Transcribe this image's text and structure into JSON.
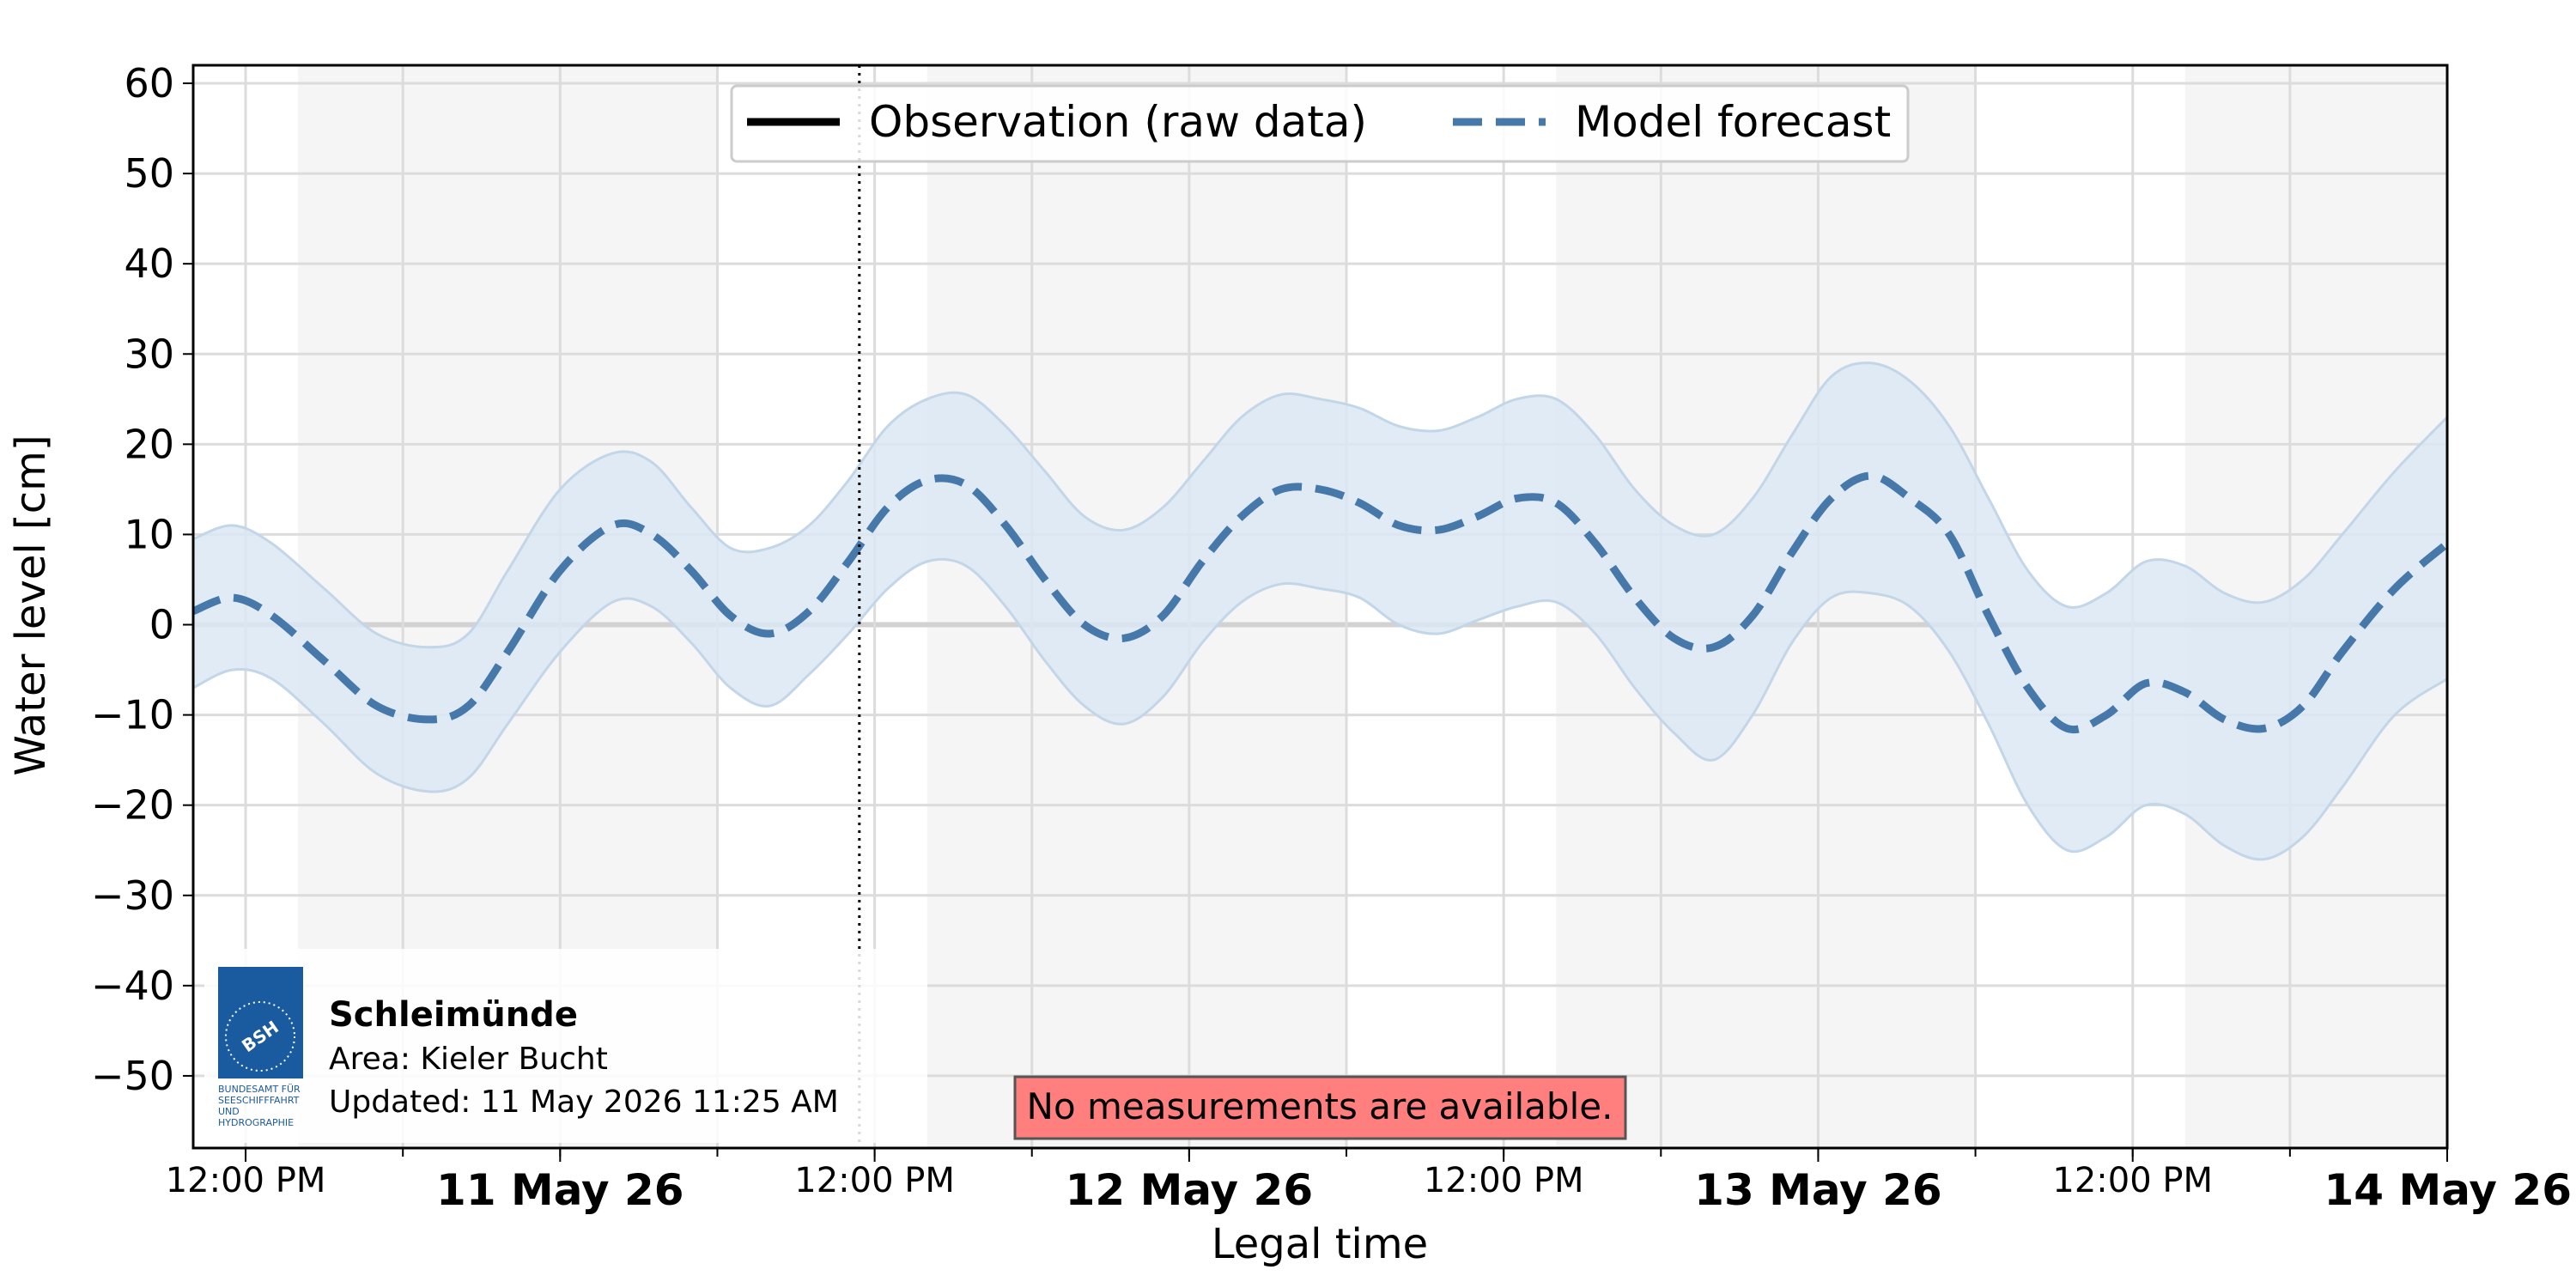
{
  "chart_data": {
    "type": "line",
    "title": "",
    "xlabel": "Legal time",
    "ylabel": "Water level [cm]",
    "ylim": [
      -58,
      62
    ],
    "x_range": [
      "2026-05-10 10:00",
      "2026-05-14 00:00"
    ],
    "yticks": [
      60,
      50,
      40,
      30,
      20,
      10,
      0,
      -10,
      -20,
      -30,
      -40,
      -50
    ],
    "ytick_labels": [
      "60",
      "50",
      "40",
      "30",
      "20",
      "10",
      "0",
      "−10",
      "−20",
      "−30",
      "−40",
      "−50"
    ],
    "xticks": [
      {
        "t": "2026-05-10 12:00",
        "label": "12:00 PM",
        "major": false
      },
      {
        "t": "2026-05-11 00:00",
        "label": "11 May 26",
        "major": true
      },
      {
        "t": "2026-05-11 12:00",
        "label": "12:00 PM",
        "major": false
      },
      {
        "t": "2026-05-12 00:00",
        "label": "12 May 26",
        "major": true
      },
      {
        "t": "2026-05-12 12:00",
        "label": "12:00 PM",
        "major": false
      },
      {
        "t": "2026-05-13 00:00",
        "label": "13 May 26",
        "major": true
      },
      {
        "t": "2026-05-13 12:00",
        "label": "12:00 PM",
        "major": false
      },
      {
        "t": "2026-05-14 00:00",
        "label": "14 May 26",
        "major": true
      }
    ],
    "night_bands": [
      [
        "2026-05-10 14:00",
        "2026-05-11 06:00"
      ],
      [
        "2026-05-11 14:00",
        "2026-05-12 06:00"
      ],
      [
        "2026-05-12 14:00",
        "2026-05-13 06:00"
      ],
      [
        "2026-05-13 14:00",
        "2026-05-14 00:00"
      ]
    ],
    "now_line": "2026-05-11 11:25",
    "grid": true,
    "legend_position": "top-center",
    "series": [
      {
        "name": "Observation (raw data)",
        "style": "solid",
        "color": "#000000",
        "values": []
      },
      {
        "name": "Model forecast",
        "style": "dashed",
        "color": "#4678aa",
        "band_color": "#dbe7f3",
        "band_edge_color": "#c3d6e8",
        "points": [
          {
            "t": "2026-05-10 10:00",
            "y": 1.5,
            "lo": -7,
            "hi": 9.5
          },
          {
            "t": "2026-05-10 11:30",
            "y": 3,
            "lo": -5,
            "hi": 11
          },
          {
            "t": "2026-05-10 13:00",
            "y": 1,
            "lo": -6,
            "hi": 9
          },
          {
            "t": "2026-05-10 15:00",
            "y": -4,
            "lo": -11,
            "hi": 4
          },
          {
            "t": "2026-05-10 17:00",
            "y": -9,
            "lo": -16.5,
            "hi": -1
          },
          {
            "t": "2026-05-10 19:00",
            "y": -10.5,
            "lo": -18.5,
            "hi": -2.5
          },
          {
            "t": "2026-05-10 20:30",
            "y": -9,
            "lo": -17,
            "hi": -1
          },
          {
            "t": "2026-05-10 22:00",
            "y": -3,
            "lo": -11,
            "hi": 6
          },
          {
            "t": "2026-05-11 00:00",
            "y": 6,
            "lo": -3,
            "hi": 15
          },
          {
            "t": "2026-05-11 02:00",
            "y": 11,
            "lo": 2.5,
            "hi": 19
          },
          {
            "t": "2026-05-11 03:30",
            "y": 10,
            "lo": 2,
            "hi": 18
          },
          {
            "t": "2026-05-11 05:00",
            "y": 6,
            "lo": -2,
            "hi": 13
          },
          {
            "t": "2026-05-11 06:30",
            "y": 1,
            "lo": -7,
            "hi": 8.5
          },
          {
            "t": "2026-05-11 08:00",
            "y": -1,
            "lo": -9,
            "hi": 8.5
          },
          {
            "t": "2026-05-11 09:30",
            "y": 1.5,
            "lo": -5.5,
            "hi": 11
          },
          {
            "t": "2026-05-11 11:00",
            "y": 7,
            "lo": -1,
            "hi": 16
          },
          {
            "t": "2026-05-11 12:30",
            "y": 13,
            "lo": 4,
            "hi": 22
          },
          {
            "t": "2026-05-11 14:00",
            "y": 16,
            "lo": 7,
            "hi": 25
          },
          {
            "t": "2026-05-11 15:30",
            "y": 15.5,
            "lo": 6.5,
            "hi": 25.5
          },
          {
            "t": "2026-05-11 17:00",
            "y": 11,
            "lo": 2,
            "hi": 22
          },
          {
            "t": "2026-05-11 18:30",
            "y": 5,
            "lo": -4,
            "hi": 17
          },
          {
            "t": "2026-05-11 20:00",
            "y": 0,
            "lo": -9,
            "hi": 12
          },
          {
            "t": "2026-05-11 21:30",
            "y": -1.5,
            "lo": -11,
            "hi": 10.5
          },
          {
            "t": "2026-05-11 23:00",
            "y": 1,
            "lo": -8,
            "hi": 13
          },
          {
            "t": "2026-05-12 00:30",
            "y": 7,
            "lo": -2,
            "hi": 18
          },
          {
            "t": "2026-05-12 02:00",
            "y": 12,
            "lo": 2.5,
            "hi": 23
          },
          {
            "t": "2026-05-12 03:30",
            "y": 15,
            "lo": 4.5,
            "hi": 25.5
          },
          {
            "t": "2026-05-12 05:00",
            "y": 15,
            "lo": 4,
            "hi": 25
          },
          {
            "t": "2026-05-12 06:30",
            "y": 13.5,
            "lo": 3,
            "hi": 24
          },
          {
            "t": "2026-05-12 08:00",
            "y": 11,
            "lo": 0,
            "hi": 22
          },
          {
            "t": "2026-05-12 09:30",
            "y": 10.5,
            "lo": -1,
            "hi": 21.5
          },
          {
            "t": "2026-05-12 11:00",
            "y": 12,
            "lo": 0.5,
            "hi": 23
          },
          {
            "t": "2026-05-12 12:30",
            "y": 14,
            "lo": 2,
            "hi": 25
          },
          {
            "t": "2026-05-12 14:00",
            "y": 13.5,
            "lo": 2.5,
            "hi": 25
          },
          {
            "t": "2026-05-12 15:30",
            "y": 9,
            "lo": -1,
            "hi": 21
          },
          {
            "t": "2026-05-12 17:00",
            "y": 3,
            "lo": -7,
            "hi": 15
          },
          {
            "t": "2026-05-12 18:30",
            "y": -1.5,
            "lo": -12,
            "hi": 11
          },
          {
            "t": "2026-05-12 20:00",
            "y": -2.5,
            "lo": -15,
            "hi": 10
          },
          {
            "t": "2026-05-12 21:30",
            "y": 1,
            "lo": -10,
            "hi": 14
          },
          {
            "t": "2026-05-12 23:00",
            "y": 8,
            "lo": -2,
            "hi": 21
          },
          {
            "t": "2026-05-13 00:30",
            "y": 14,
            "lo": 3,
            "hi": 27.5
          },
          {
            "t": "2026-05-13 02:00",
            "y": 16.5,
            "lo": 3.5,
            "hi": 29
          },
          {
            "t": "2026-05-13 03:30",
            "y": 14,
            "lo": 2,
            "hi": 27
          },
          {
            "t": "2026-05-13 05:00",
            "y": 10,
            "lo": -3,
            "hi": 22
          },
          {
            "t": "2026-05-13 06:30",
            "y": 1,
            "lo": -11,
            "hi": 14
          },
          {
            "t": "2026-05-13 08:00",
            "y": -7,
            "lo": -20,
            "hi": 6
          },
          {
            "t": "2026-05-13 09:30",
            "y": -11.5,
            "lo": -25,
            "hi": 2
          },
          {
            "t": "2026-05-13 11:00",
            "y": -10,
            "lo": -23.5,
            "hi": 3.5
          },
          {
            "t": "2026-05-13 12:30",
            "y": -6.5,
            "lo": -20,
            "hi": 7
          },
          {
            "t": "2026-05-13 14:00",
            "y": -7.5,
            "lo": -21,
            "hi": 6.5
          },
          {
            "t": "2026-05-13 15:30",
            "y": -10.5,
            "lo": -24.5,
            "hi": 3.5
          },
          {
            "t": "2026-05-13 17:00",
            "y": -11.5,
            "lo": -26,
            "hi": 2.5
          },
          {
            "t": "2026-05-13 18:30",
            "y": -9,
            "lo": -23.5,
            "hi": 5
          },
          {
            "t": "2026-05-13 20:00",
            "y": -3,
            "lo": -18,
            "hi": 10
          },
          {
            "t": "2026-05-13 22:00",
            "y": 4,
            "lo": -10,
            "hi": 17
          },
          {
            "t": "2026-05-14 00:00",
            "y": 9,
            "lo": -6,
            "hi": 23
          }
        ]
      }
    ]
  },
  "station": {
    "name": "Schleimünde",
    "area": "Area: Kieler Bucht",
    "updated": "Updated: 11 May 2026 11:25 AM",
    "logo_text": "BSH",
    "logo_caption": [
      "BUNDESAMT FÜR",
      "SEESCHIFFFAHRT",
      "UND",
      "HYDROGRAPHIE"
    ]
  },
  "warning": {
    "text": "No measurements are available.",
    "bg_color": "#ff7f7f"
  }
}
